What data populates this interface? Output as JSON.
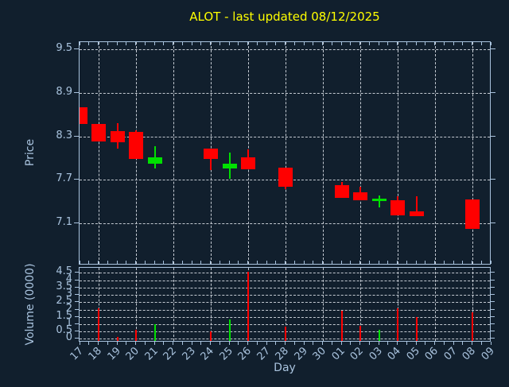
{
  "title": "ALOT - last updated 08/12/2025",
  "axes": {
    "x_label": "Day",
    "price_label": "Price",
    "volume_label": "Volume (0000)"
  },
  "colors": {
    "background": "#111f2d",
    "axis": "#a9c3de",
    "grid": "#c3c9d1",
    "title": "#ffff00",
    "up": "#00e000",
    "down": "#ff0000"
  },
  "chart_data": {
    "type": "candlestick",
    "title": "ALOT - last updated 08/12/2025",
    "xlabel": "Day",
    "price_ylabel": "Price",
    "volume_ylabel": "Volume (0000)",
    "x_categories": [
      "17",
      "18",
      "19",
      "20",
      "21",
      "22",
      "23",
      "24",
      "25",
      "26",
      "27",
      "28",
      "29",
      "30",
      "01",
      "02",
      "03",
      "04",
      "05",
      "06",
      "07",
      "08",
      "09"
    ],
    "price_ylim": [
      6.52,
      9.6
    ],
    "price_yticks": [
      9.5,
      8.9,
      8.3,
      7.7,
      7.1
    ],
    "volume_ylim": [
      -0.25,
      4.85
    ],
    "volume_yticks": [
      4.5,
      4,
      3.5,
      3,
      2.5,
      2,
      1.5,
      1,
      0.5,
      0
    ],
    "grid": "dashed, vertical line every 2nd day starting at 18",
    "legend_position": "none",
    "ohlc": [
      {
        "day": "17",
        "open": 8.7,
        "high": 8.7,
        "low": 8.47,
        "close": 8.47,
        "volume": 0,
        "direction": "down"
      },
      {
        "day": "18",
        "open": 8.47,
        "high": 8.47,
        "low": 8.23,
        "close": 8.23,
        "volume": 2.1,
        "direction": "down"
      },
      {
        "day": "19",
        "open": 8.37,
        "high": 8.48,
        "low": 8.13,
        "close": 8.22,
        "volume": 0.15,
        "direction": "down"
      },
      {
        "day": "20",
        "open": 8.36,
        "high": 8.38,
        "low": 7.99,
        "close": 7.99,
        "volume": 0.6,
        "direction": "down"
      },
      {
        "day": "21",
        "open": 7.92,
        "high": 8.16,
        "low": 7.86,
        "close": 8.01,
        "volume": 1.0,
        "direction": "up"
      },
      {
        "day": "24",
        "open": 8.13,
        "high": 8.13,
        "low": 7.83,
        "close": 7.99,
        "volume": 0.5,
        "direction": "down"
      },
      {
        "day": "25",
        "open": 7.86,
        "high": 8.08,
        "low": 7.71,
        "close": 7.92,
        "volume": 1.3,
        "direction": "up"
      },
      {
        "day": "26",
        "open": 8.01,
        "high": 8.12,
        "low": 7.85,
        "close": 7.85,
        "volume": 4.6,
        "direction": "down"
      },
      {
        "day": "28",
        "open": 7.87,
        "high": 7.87,
        "low": 7.57,
        "close": 7.6,
        "volume": 0.85,
        "direction": "down"
      },
      {
        "day": "01",
        "open": 7.63,
        "high": 7.67,
        "low": 7.45,
        "close": 7.45,
        "volume": 1.9,
        "direction": "down"
      },
      {
        "day": "02",
        "open": 7.53,
        "high": 7.61,
        "low": 7.42,
        "close": 7.42,
        "volume": 0.9,
        "direction": "down"
      },
      {
        "day": "03",
        "open": 7.41,
        "high": 7.48,
        "low": 7.32,
        "close": 7.44,
        "volume": 0.6,
        "direction": "up"
      },
      {
        "day": "04",
        "open": 7.42,
        "high": 7.47,
        "low": 7.21,
        "close": 7.21,
        "volume": 2.1,
        "direction": "down"
      },
      {
        "day": "05",
        "open": 7.27,
        "high": 7.47,
        "low": 7.2,
        "close": 7.2,
        "volume": 1.5,
        "direction": "down"
      },
      {
        "day": "08",
        "open": 7.43,
        "high": 7.43,
        "low": 7.02,
        "close": 7.02,
        "volume": 1.8,
        "direction": "down"
      }
    ]
  }
}
